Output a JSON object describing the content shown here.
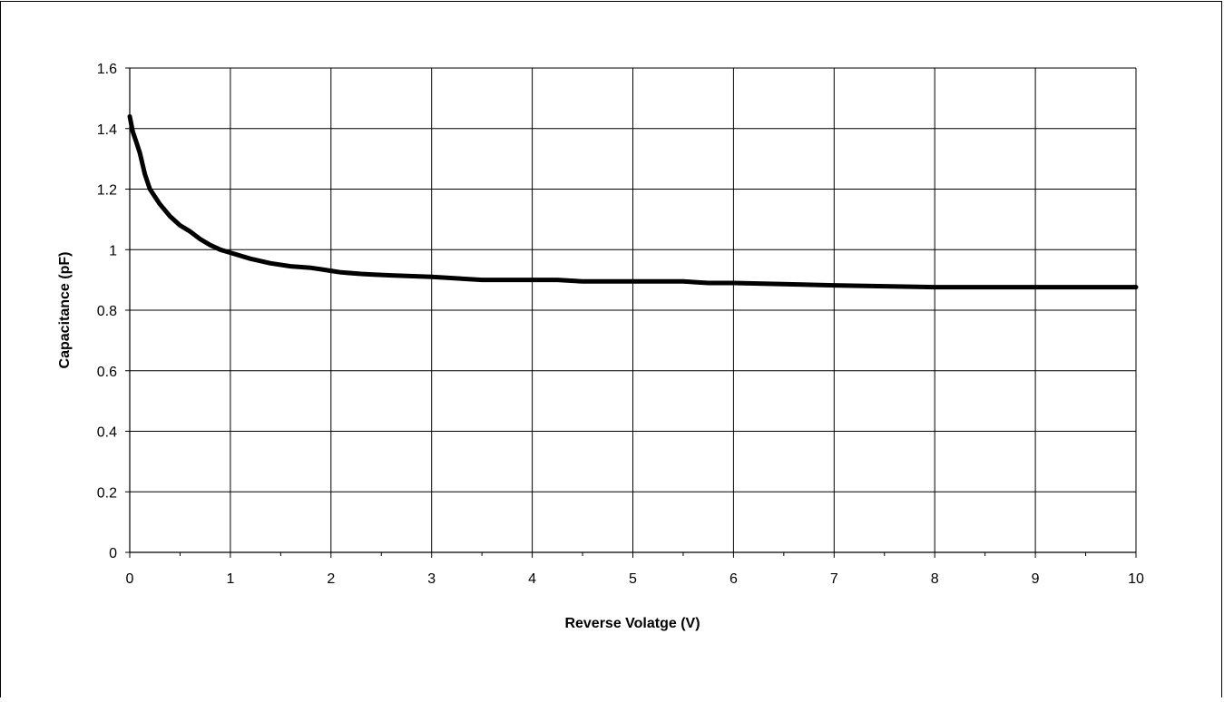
{
  "chart_data": {
    "type": "line",
    "title": "",
    "xlabel": "Reverse Volatge (V)",
    "ylabel": "Capacitance (pF)",
    "xlim": [
      0,
      10
    ],
    "ylim": [
      0,
      1.6
    ],
    "x_ticks": [
      "0",
      "1",
      "2",
      "3",
      "4",
      "5",
      "6",
      "7",
      "8",
      "9",
      "10"
    ],
    "y_ticks": [
      "0",
      "0.2",
      "0.4",
      "0.6",
      "0.8",
      "1",
      "1.2",
      "1.4",
      "1.6"
    ],
    "x_tick_values": [
      0,
      1,
      2,
      3,
      4,
      5,
      6,
      7,
      8,
      9,
      10
    ],
    "y_tick_values": [
      0,
      0.2,
      0.4,
      0.6,
      0.8,
      1.0,
      1.2,
      1.4,
      1.6
    ],
    "grid": true,
    "legend": "none",
    "line_color": "#000000",
    "series": [
      {
        "x": [
          0,
          0.03,
          0.06,
          0.1,
          0.15,
          0.2,
          0.3,
          0.4,
          0.5,
          0.6,
          0.7,
          0.8,
          0.9,
          1.0,
          1.2,
          1.4,
          1.6,
          1.8,
          1.9,
          2.0,
          2.1,
          2.3,
          2.4,
          2.6,
          3.0,
          3.5,
          4.0,
          4.25,
          4.5,
          5.0,
          5.5,
          5.75,
          6.0,
          7.0,
          8.0,
          9.0,
          10.0
        ],
        "y": [
          1.44,
          1.39,
          1.36,
          1.32,
          1.25,
          1.2,
          1.15,
          1.11,
          1.08,
          1.06,
          1.035,
          1.015,
          1.0,
          0.99,
          0.97,
          0.955,
          0.945,
          0.94,
          0.935,
          0.93,
          0.925,
          0.92,
          0.918,
          0.915,
          0.91,
          0.9,
          0.9,
          0.9,
          0.895,
          0.895,
          0.895,
          0.89,
          0.89,
          0.882,
          0.876,
          0.876,
          0.876
        ]
      }
    ]
  }
}
